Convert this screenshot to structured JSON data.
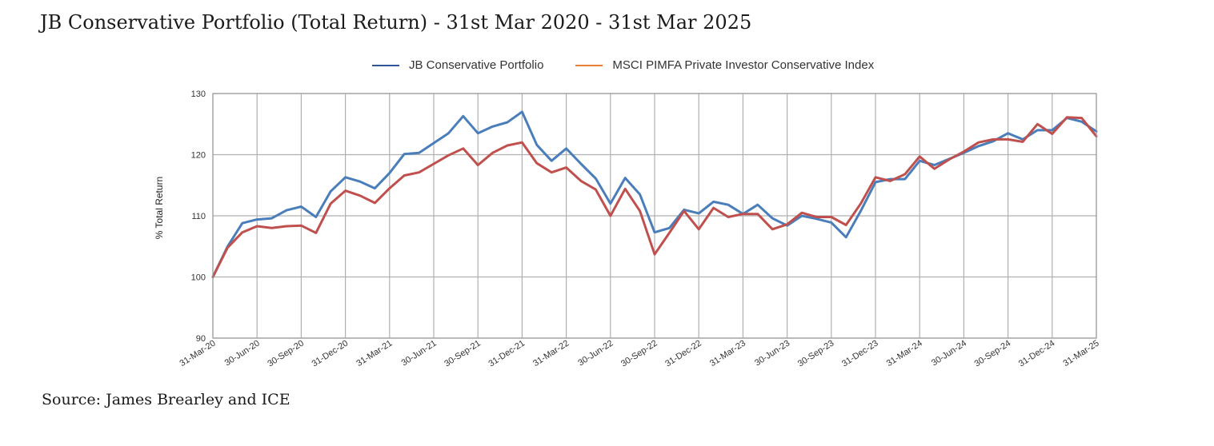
{
  "page": {
    "title": "JB Conservative Portfolio (Total Return) - 31st Mar 2020 - 31st Mar 2025",
    "source": "Source: James Brearley and ICE"
  },
  "chart_data": {
    "type": "line",
    "ylabel": "% Total Return",
    "ylim": [
      90,
      130
    ],
    "yticks": [
      90,
      100,
      110,
      120,
      130
    ],
    "grid": true,
    "legend_position": "top-center",
    "x_tick_labels": [
      "31-Mar-20",
      "30-Jun-20",
      "30-Sep-20",
      "31-Dec-20",
      "31-Mar-21",
      "30-Jun-21",
      "30-Sep-21",
      "31-Dec-21",
      "31-Mar-22",
      "30-Jun-22",
      "30-Sep-22",
      "31-Dec-22",
      "31-Mar-23",
      "30-Jun-23",
      "30-Sep-23",
      "31-Dec-23",
      "31-Mar-24",
      "30-Jun-24",
      "30-Sep-24",
      "31-Dec-24",
      "31-Mar-25"
    ],
    "points_per_interval": 3,
    "series": [
      {
        "name": "JB Conservative Portfolio",
        "legend_color": "#2F5597",
        "line_color": "#4A7EBB",
        "values": [
          100.0,
          105.0,
          108.8,
          109.4,
          109.6,
          110.9,
          111.5,
          109.8,
          114.0,
          116.3,
          115.6,
          114.5,
          117.0,
          120.1,
          120.3,
          121.9,
          123.5,
          126.3,
          123.5,
          124.6,
          125.3,
          127.0,
          121.6,
          119.0,
          121.0,
          118.5,
          116.1,
          112.0,
          116.2,
          113.5,
          107.3,
          108.0,
          111.0,
          110.4,
          112.3,
          111.8,
          110.3,
          111.8,
          109.6,
          108.4,
          110.0,
          109.5,
          108.9,
          106.5,
          110.8,
          115.5,
          116.0,
          116.0,
          119.0,
          118.3,
          119.3,
          120.3,
          121.4,
          122.2,
          123.5,
          122.5,
          124.0,
          124.0,
          126.0,
          125.4,
          123.8
        ]
      },
      {
        "name": "MSCI PIMFA Private Investor Conservative Index",
        "legend_color": "#ED7D31",
        "line_color": "#C0504D",
        "values": [
          100.0,
          104.8,
          107.3,
          108.3,
          108.0,
          108.3,
          108.4,
          107.2,
          112.0,
          114.1,
          113.3,
          112.1,
          114.5,
          116.6,
          117.1,
          118.5,
          119.9,
          121.0,
          118.3,
          120.3,
          121.5,
          122.0,
          118.6,
          117.1,
          117.9,
          115.7,
          114.3,
          110.0,
          114.4,
          110.8,
          103.7,
          107.2,
          110.8,
          107.8,
          111.3,
          109.8,
          110.3,
          110.3,
          107.8,
          108.6,
          110.5,
          109.8,
          109.8,
          108.5,
          112.0,
          116.3,
          115.7,
          116.8,
          119.7,
          117.7,
          119.2,
          120.5,
          122.0,
          122.5,
          122.5,
          122.1,
          125.0,
          123.4,
          126.1,
          126.0,
          123.0
        ]
      }
    ]
  }
}
